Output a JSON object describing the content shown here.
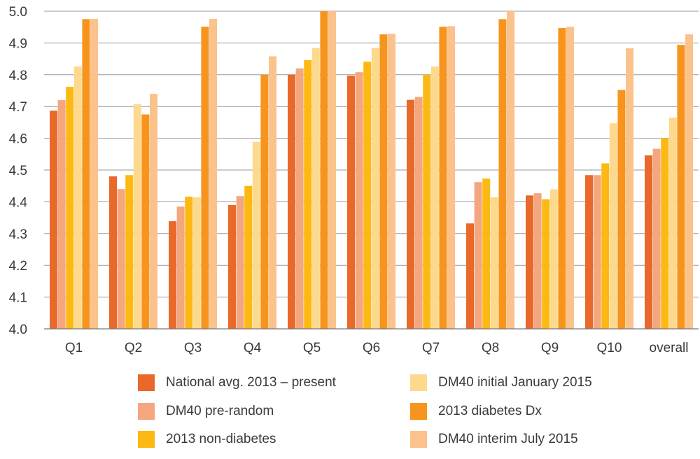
{
  "chart_data": {
    "type": "bar",
    "categories": [
      "Q1",
      "Q2",
      "Q3",
      "Q4",
      "Q5",
      "Q6",
      "Q7",
      "Q8",
      "Q9",
      "Q10",
      "overall"
    ],
    "ylim": [
      4.0,
      5.0
    ],
    "yticks": [
      "4.0",
      "4.1",
      "4.2",
      "4.3",
      "4.4",
      "4.5",
      "4.6",
      "4.7",
      "4.8",
      "4.9",
      "5.0"
    ],
    "grid": true,
    "legend_position": "bottom",
    "series": [
      {
        "name": "National avg. 2013 – present",
        "color": "#E8692A",
        "values": [
          4.687,
          4.48,
          4.339,
          4.39,
          4.8,
          4.797,
          4.721,
          4.332,
          4.42,
          4.484,
          4.546
        ]
      },
      {
        "name": "DM40 pre-random",
        "color": "#F4A77E",
        "values": [
          4.72,
          4.44,
          4.385,
          4.418,
          4.82,
          4.808,
          4.73,
          4.462,
          4.427,
          4.484,
          4.567
        ]
      },
      {
        "name": "2013 non-diabetes",
        "color": "#FDB913",
        "values": [
          4.762,
          4.484,
          4.416,
          4.45,
          4.846,
          4.841,
          4.8,
          4.473,
          4.408,
          4.521,
          4.6
        ]
      },
      {
        "name": "DM40 initial January 2015",
        "color": "#FDD98E",
        "values": [
          4.826,
          4.707,
          4.414,
          4.589,
          4.884,
          4.884,
          4.826,
          4.414,
          4.439,
          4.647,
          4.665
        ]
      },
      {
        "name": "2013 diabetes Dx",
        "color": "#F7941D",
        "values": [
          4.975,
          4.675,
          4.951,
          4.8,
          5.0,
          4.927,
          4.951,
          4.975,
          4.947,
          4.752,
          4.894
        ]
      },
      {
        "name": "DM40 interim July 2015",
        "color": "#FBC28C",
        "values": [
          4.976,
          4.74,
          4.976,
          4.858,
          5.0,
          4.929,
          4.953,
          5.0,
          4.951,
          4.883,
          4.927
        ]
      }
    ]
  }
}
